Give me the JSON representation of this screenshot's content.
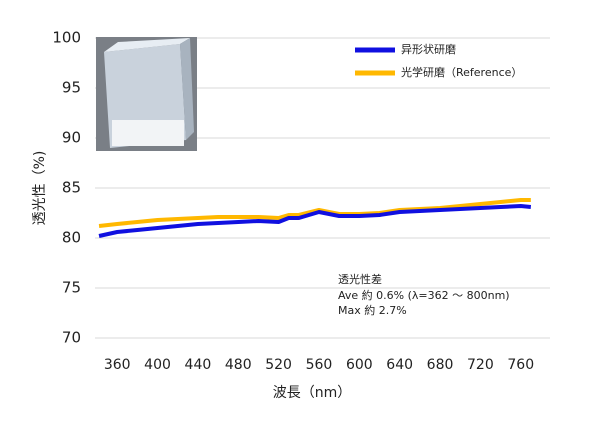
{
  "chart_data": {
    "type": "line",
    "x_label": "波長（nm）",
    "y_label": "透光性（%)",
    "annotations": [
      "透光性差",
      "Ave 約 0.6% (λ=362 ～ 800nm)",
      "Max 約 2.7%"
    ],
    "x": [
      342,
      360,
      380,
      400,
      420,
      440,
      460,
      480,
      500,
      520,
      530,
      540,
      560,
      580,
      600,
      620,
      640,
      660,
      680,
      700,
      720,
      740,
      760,
      770
    ],
    "series": [
      {
        "name": "异形状研磨",
        "color": "#1010e0",
        "values": [
          80.2,
          80.6,
          80.8,
          81.0,
          81.2,
          81.4,
          81.5,
          81.6,
          81.7,
          81.6,
          82.0,
          82.0,
          82.6,
          82.2,
          82.2,
          82.3,
          82.6,
          82.7,
          82.8,
          82.9,
          83.0,
          83.1,
          83.2,
          83.1
        ]
      },
      {
        "name": "光学研磨（Reference）",
        "color": "#ffb800",
        "values": [
          81.2,
          81.4,
          81.6,
          81.8,
          81.9,
          82.0,
          82.1,
          82.1,
          82.1,
          82.0,
          82.3,
          82.3,
          82.8,
          82.4,
          82.4,
          82.5,
          82.8,
          82.9,
          83.0,
          83.2,
          83.4,
          83.6,
          83.8,
          83.8
        ]
      }
    ],
    "xlim": [
      338,
      789
    ],
    "xticks": [
      360,
      400,
      440,
      480,
      520,
      560,
      600,
      640,
      680,
      720,
      760
    ],
    "ylim": [
      70,
      100
    ],
    "yticks": [
      70,
      75,
      80,
      85,
      90,
      95,
      100
    ],
    "grid": true,
    "legend": "top-right"
  }
}
